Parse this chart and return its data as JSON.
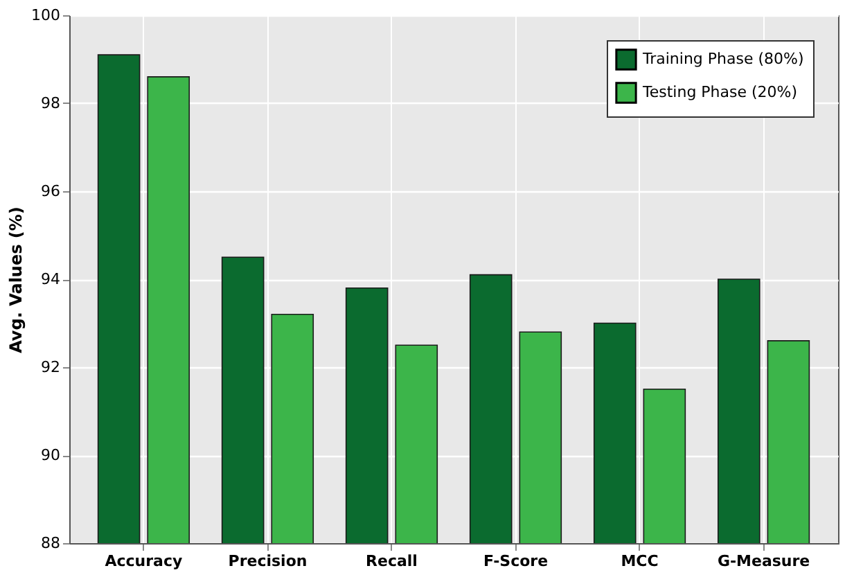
{
  "chart_data": {
    "type": "bar",
    "ylabel": "Avg. Values (%)",
    "categories": [
      "Accuracy",
      "Precision",
      "Recall",
      "F-Score",
      "MCC",
      "G-Measure"
    ],
    "series": [
      {
        "name": "Training Phase (80%)",
        "color": "#0b6b2f",
        "values": [
          99.1,
          94.5,
          93.8,
          94.1,
          93.0,
          94.0
        ]
      },
      {
        "name": "Testing Phase (20%)",
        "color": "#3cb54a",
        "values": [
          98.6,
          93.2,
          92.5,
          92.8,
          91.5,
          92.6
        ]
      }
    ],
    "ylim": [
      88,
      100
    ],
    "yticks": [
      88,
      90,
      92,
      94,
      96,
      98,
      100
    ],
    "grid": true,
    "legend": "top right"
  }
}
